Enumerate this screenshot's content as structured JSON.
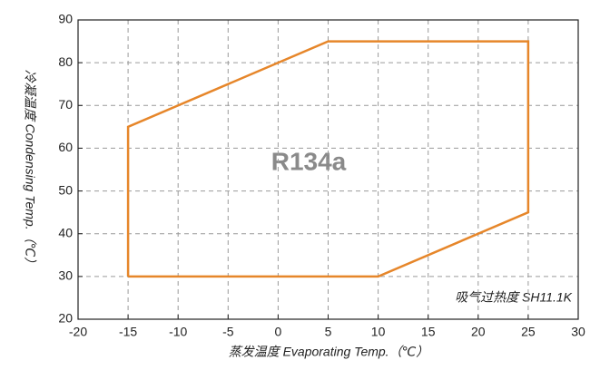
{
  "chart_data": {
    "type": "line",
    "x": [
      -15,
      -15,
      5,
      25,
      25,
      10,
      -15
    ],
    "series": [
      {
        "color": "#e6862a",
        "values": [
          30,
          65,
          85,
          85,
          45,
          30,
          30
        ]
      }
    ],
    "xlim": [
      -20,
      30
    ],
    "xticks": [
      -20,
      -15,
      -10,
      -5,
      0,
      5,
      10,
      15,
      20,
      25,
      30
    ],
    "ylim": [
      20,
      90
    ],
    "yticks": [
      20,
      30,
      40,
      50,
      60,
      70,
      80,
      90
    ],
    "grid": true,
    "xlabel": "蒸发温度  Evaporating Temp.（℃）",
    "ylabel": "冷凝温度 Condensing Temp.（℃）",
    "annotations": [
      "R134a",
      "吸气过热度 SH11.1K"
    ]
  }
}
